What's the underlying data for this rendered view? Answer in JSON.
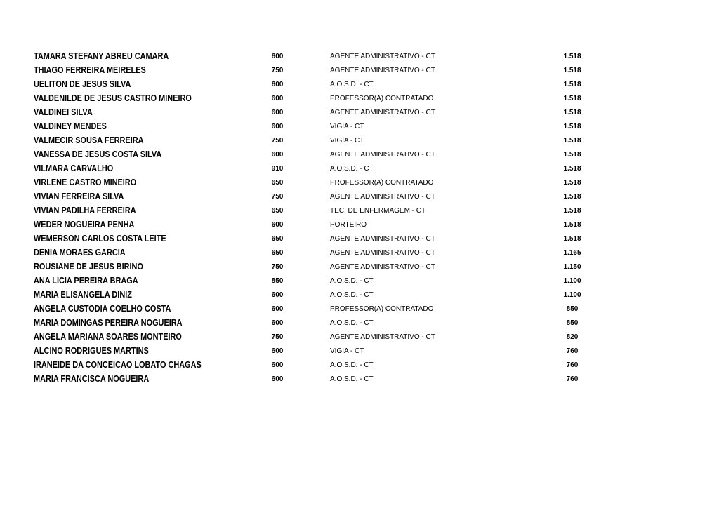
{
  "table": {
    "rows": [
      [
        "TAMARA STEFANY ABREU CAMARA",
        "600",
        "AGENTE ADMINISTRATIVO - CT",
        "1.518"
      ],
      [
        "THIAGO FERREIRA MEIRELES",
        "750",
        "AGENTE ADMINISTRATIVO - CT",
        "1.518"
      ],
      [
        "UELITON DE JESUS SILVA",
        "600",
        "A.O.S.D. - CT",
        "1.518"
      ],
      [
        "VALDENILDE DE JESUS CASTRO MINEIRO",
        "600",
        "PROFESSOR(A) CONTRATADO",
        "1.518"
      ],
      [
        "VALDINEI SILVA",
        "600",
        "AGENTE ADMINISTRATIVO - CT",
        "1.518"
      ],
      [
        "VALDINEY MENDES",
        "600",
        "VIGIA - CT",
        "1.518"
      ],
      [
        "VALMECIR SOUSA FERREIRA",
        "750",
        "VIGIA - CT",
        "1.518"
      ],
      [
        "VANESSA DE JESUS COSTA SILVA",
        "600",
        "AGENTE ADMINISTRATIVO - CT",
        "1.518"
      ],
      [
        "VILMARA CARVALHO",
        "910",
        "A.O.S.D. - CT",
        "1.518"
      ],
      [
        "VIRLENE CASTRO MINEIRO",
        "650",
        "PROFESSOR(A) CONTRATADO",
        "1.518"
      ],
      [
        "VIVIAN FERREIRA SILVA",
        "750",
        "AGENTE ADMINISTRATIVO - CT",
        "1.518"
      ],
      [
        "VIVIAN PADILHA FERREIRA",
        "650",
        "TEC. DE ENFERMAGEM - CT",
        "1.518"
      ],
      [
        "WEDER NOGUEIRA PENHA",
        "600",
        "PORTEIRO",
        "1.518"
      ],
      [
        "WEMERSON CARLOS COSTA LEITE",
        "650",
        "AGENTE ADMINISTRATIVO - CT",
        "1.518"
      ],
      [
        "DENIA MORAES GARCIA",
        "650",
        "AGENTE ADMINISTRATIVO - CT",
        "1.165"
      ],
      [
        "ROUSIANE DE JESUS BIRINO",
        "750",
        "AGENTE ADMINISTRATIVO - CT",
        "1.150"
      ],
      [
        "ANA LICIA PEREIRA BRAGA",
        "850",
        "A.O.S.D. - CT",
        "1.100"
      ],
      [
        "MARIA ELISANGELA DINIZ",
        "600",
        "A.O.S.D. - CT",
        "1.100"
      ],
      [
        "ANGELA CUSTODIA COELHO COSTA",
        "600",
        "PROFESSOR(A) CONTRATADO",
        "850"
      ],
      [
        "MARIA DOMINGAS PEREIRA NOGUEIRA",
        "600",
        "A.O.S.D. - CT",
        "850"
      ],
      [
        "ANGELA MARIANA SOARES MONTEIRO",
        "750",
        "AGENTE ADMINISTRATIVO - CT",
        "820"
      ],
      [
        "ALCINO RODRIGUES MARTINS",
        "600",
        "VIGIA - CT",
        "760"
      ],
      [
        "IRANEIDE DA CONCEICAO LOBATO CHAGAS",
        "600",
        "A.O.S.D. - CT",
        "760"
      ],
      [
        "MARIA FRANCISCA NOGUEIRA",
        "600",
        "A.O.S.D. - CT",
        "760"
      ]
    ]
  }
}
